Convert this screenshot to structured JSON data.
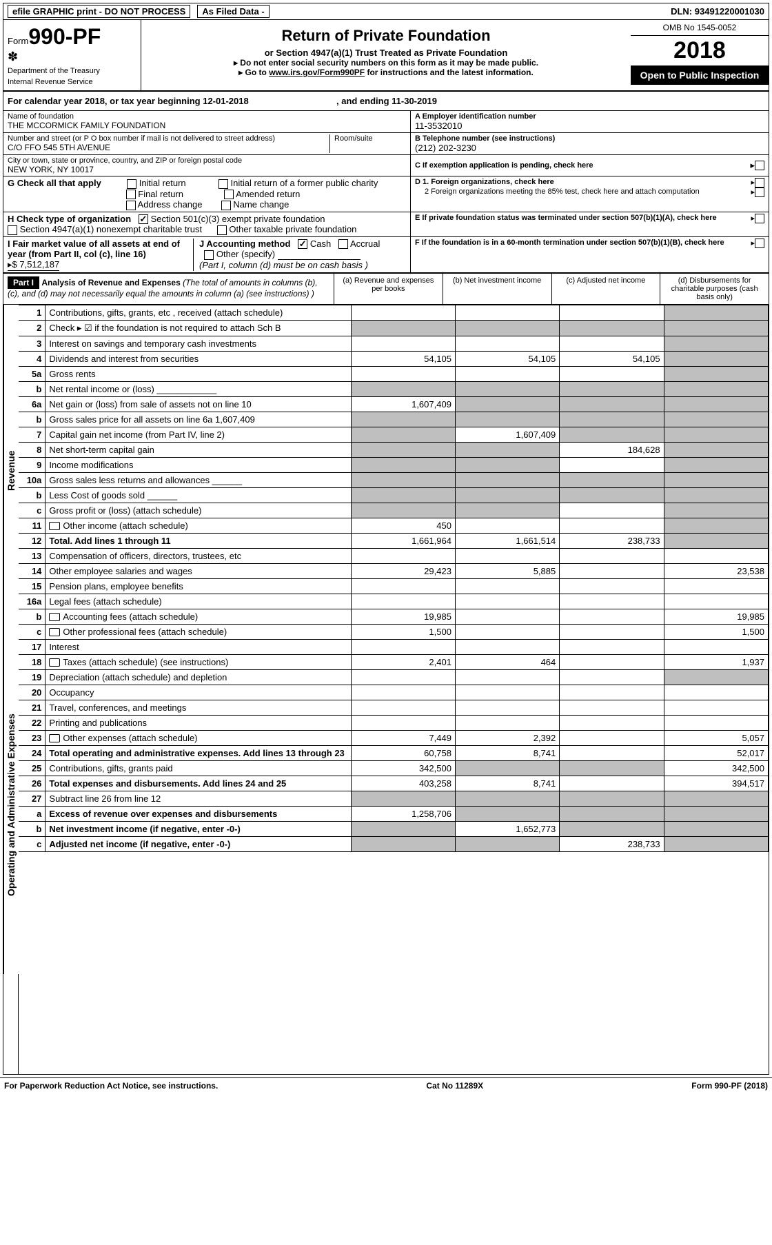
{
  "topbar": {
    "efile": "efile GRAPHIC print - DO NOT PROCESS",
    "asfiled": "As Filed Data -",
    "dln_label": "DLN:",
    "dln": "93491220001030"
  },
  "header": {
    "form_label": "Form",
    "form_no": "990-PF",
    "dept1": "Department of the Treasury",
    "dept2": "Internal Revenue Service",
    "title": "Return of Private Foundation",
    "subtitle": "or Section 4947(a)(1) Trust Treated as Private Foundation",
    "note1": "▸ Do not enter social security numbers on this form as it may be made public.",
    "note2_pre": "▸ Go to ",
    "note2_link": "www.irs.gov/Form990PF",
    "note2_post": " for instructions and the latest information.",
    "omb": "OMB No  1545-0052",
    "year": "2018",
    "openpub": "Open to Public Inspection"
  },
  "calrow": {
    "text_a": "For calendar year 2018, or tax year beginning 12-01-2018",
    "text_b": ", and ending 11-30-2019"
  },
  "name_block": {
    "label": "Name of foundation",
    "value": "THE MCCORMICK FAMILY FOUNDATION",
    "a_label": "A Employer identification number",
    "a_value": "11-3532010",
    "addr_label": "Number and street (or P O  box number if mail is not delivered to street address)",
    "room_label": "Room/suite",
    "addr_value": "C/O FFO 545 5TH AVENUE",
    "b_label": "B Telephone number (see instructions)",
    "b_value": "(212) 202-3230",
    "city_label": "City or town, state or province, country, and ZIP or foreign postal code",
    "city_value": "NEW YORK, NY  10017",
    "c_label": "C  If exemption application is pending, check here"
  },
  "checks": {
    "g_label": "G Check all that apply",
    "g1": "Initial return",
    "g2": "Initial return of a former public charity",
    "g3": "Final return",
    "g4": "Amended return",
    "g5": "Address change",
    "g6": "Name change",
    "h_label": "H Check type of organization",
    "h1": "Section 501(c)(3) exempt private foundation",
    "h2": "Section 4947(a)(1) nonexempt charitable trust",
    "h3": "Other taxable private foundation",
    "d1": "D 1. Foreign organizations, check here",
    "d2": "2  Foreign organizations meeting the 85% test, check here and attach computation",
    "e": "E  If private foundation status was terminated under section 507(b)(1)(A), check here",
    "i_label": "I Fair market value of all assets at end of year (from Part II, col  (c), line 16)",
    "i_value": "▸$  7,512,187",
    "j_label": "J Accounting method",
    "j1": "Cash",
    "j2": "Accrual",
    "j3": "Other (specify)",
    "j_note": "(Part I, column (d) must be on cash basis )",
    "f": "F  If the foundation is in a 60-month termination under section 507(b)(1)(B), check here"
  },
  "part1": {
    "badge": "Part I",
    "title": "Analysis of Revenue and Expenses",
    "title_note": " (The total of amounts in columns (b), (c), and (d) may not necessarily equal the amounts in column (a) (see instructions) )",
    "col_a": "(a)  Revenue and expenses per books",
    "col_b": "(b)  Net investment income",
    "col_c": "(c)  Adjusted net income",
    "col_d": "(d)  Disbursements for charitable purposes (cash basis only)"
  },
  "vlabels": {
    "revenue": "Revenue",
    "expenses": "Operating and Administrative Expenses"
  },
  "rows": [
    {
      "n": "1",
      "label": "Contributions, gifts, grants, etc , received (attach schedule)",
      "a": "",
      "b": "",
      "c": "",
      "d": "",
      "d_shade": true
    },
    {
      "n": "2",
      "label": "Check ▸ ☑ if the foundation is not required to attach Sch  B",
      "a": "",
      "b": "",
      "c": "",
      "d": "",
      "a_shade": true,
      "b_shade": true,
      "c_shade": true,
      "d_shade": true,
      "bold_check": true
    },
    {
      "n": "3",
      "label": "Interest on savings and temporary cash investments",
      "a": "",
      "b": "",
      "c": "",
      "d": "",
      "d_shade": true
    },
    {
      "n": "4",
      "label": "Dividends and interest from securities",
      "a": "54,105",
      "b": "54,105",
      "c": "54,105",
      "d": "",
      "d_shade": true
    },
    {
      "n": "5a",
      "label": "Gross rents",
      "a": "",
      "b": "",
      "c": "",
      "d": "",
      "d_shade": true
    },
    {
      "n": "b",
      "label": "Net rental income or (loss)   ____________",
      "a": "",
      "b": "",
      "c": "",
      "d": "",
      "a_shade": true,
      "b_shade": true,
      "c_shade": true,
      "d_shade": true
    },
    {
      "n": "6a",
      "label": "Net gain or (loss) from sale of assets not on line 10",
      "a": "1,607,409",
      "b": "",
      "c": "",
      "d": "",
      "b_shade": true,
      "c_shade": true,
      "d_shade": true
    },
    {
      "n": "b",
      "label": "Gross sales price for all assets on line 6a                                             1,607,409",
      "a": "",
      "b": "",
      "c": "",
      "d": "",
      "a_shade": true,
      "b_shade": true,
      "c_shade": true,
      "d_shade": true
    },
    {
      "n": "7",
      "label": "Capital gain net income (from Part IV, line 2)",
      "a": "",
      "b": "1,607,409",
      "c": "",
      "d": "",
      "a_shade": true,
      "c_shade": true,
      "d_shade": true
    },
    {
      "n": "8",
      "label": "Net short-term capital gain",
      "a": "",
      "b": "",
      "c": "184,628",
      "d": "",
      "a_shade": true,
      "b_shade": true,
      "d_shade": true
    },
    {
      "n": "9",
      "label": "Income modifications",
      "a": "",
      "b": "",
      "c": "",
      "d": "",
      "a_shade": true,
      "b_shade": true,
      "d_shade": true
    },
    {
      "n": "10a",
      "label": "Gross sales less returns and allowances  ______",
      "a": "",
      "b": "",
      "c": "",
      "d": "",
      "a_shade": true,
      "b_shade": true,
      "c_shade": true,
      "d_shade": true
    },
    {
      "n": "b",
      "label": "Less   Cost of goods sold      ______",
      "a": "",
      "b": "",
      "c": "",
      "d": "",
      "a_shade": true,
      "b_shade": true,
      "c_shade": true,
      "d_shade": true
    },
    {
      "n": "c",
      "label": "Gross profit or (loss) (attach schedule)",
      "a": "",
      "b": "",
      "c": "",
      "d": "",
      "a_shade": true,
      "b_shade": true,
      "d_shade": true
    },
    {
      "n": "11",
      "label": "Other income (attach schedule)",
      "a": "450",
      "b": "",
      "c": "",
      "d": "",
      "icon": true,
      "d_shade": true
    },
    {
      "n": "12",
      "label": "Total. Add lines 1 through 11",
      "a": "1,661,964",
      "b": "1,661,514",
      "c": "238,733",
      "d": "",
      "bold": true,
      "d_shade": true
    },
    {
      "n": "13",
      "label": "Compensation of officers, directors, trustees, etc",
      "a": "",
      "b": "",
      "c": "",
      "d": ""
    },
    {
      "n": "14",
      "label": "Other employee salaries and wages",
      "a": "29,423",
      "b": "5,885",
      "c": "",
      "d": "23,538"
    },
    {
      "n": "15",
      "label": "Pension plans, employee benefits",
      "a": "",
      "b": "",
      "c": "",
      "d": ""
    },
    {
      "n": "16a",
      "label": "Legal fees (attach schedule)",
      "a": "",
      "b": "",
      "c": "",
      "d": ""
    },
    {
      "n": "b",
      "label": "Accounting fees (attach schedule)",
      "a": "19,985",
      "b": "",
      "c": "",
      "d": "19,985",
      "icon": true
    },
    {
      "n": "c",
      "label": "Other professional fees (attach schedule)",
      "a": "1,500",
      "b": "",
      "c": "",
      "d": "1,500",
      "icon": true
    },
    {
      "n": "17",
      "label": "Interest",
      "a": "",
      "b": "",
      "c": "",
      "d": ""
    },
    {
      "n": "18",
      "label": "Taxes (attach schedule) (see instructions)",
      "a": "2,401",
      "b": "464",
      "c": "",
      "d": "1,937",
      "icon": true
    },
    {
      "n": "19",
      "label": "Depreciation (attach schedule) and depletion",
      "a": "",
      "b": "",
      "c": "",
      "d": "",
      "d_shade": true
    },
    {
      "n": "20",
      "label": "Occupancy",
      "a": "",
      "b": "",
      "c": "",
      "d": ""
    },
    {
      "n": "21",
      "label": "Travel, conferences, and meetings",
      "a": "",
      "b": "",
      "c": "",
      "d": ""
    },
    {
      "n": "22",
      "label": "Printing and publications",
      "a": "",
      "b": "",
      "c": "",
      "d": ""
    },
    {
      "n": "23",
      "label": "Other expenses (attach schedule)",
      "a": "7,449",
      "b": "2,392",
      "c": "",
      "d": "5,057",
      "icon": true
    },
    {
      "n": "24",
      "label": "Total operating and administrative expenses. Add lines 13 through 23",
      "a": "60,758",
      "b": "8,741",
      "c": "",
      "d": "52,017",
      "bold": true
    },
    {
      "n": "25",
      "label": "Contributions, gifts, grants paid",
      "a": "342,500",
      "b": "",
      "c": "",
      "d": "342,500",
      "b_shade": true,
      "c_shade": true
    },
    {
      "n": "26",
      "label": "Total expenses and disbursements. Add lines 24 and 25",
      "a": "403,258",
      "b": "8,741",
      "c": "",
      "d": "394,517",
      "bold": true
    },
    {
      "n": "27",
      "label": "Subtract line 26 from line 12",
      "a": "",
      "b": "",
      "c": "",
      "d": "",
      "a_shade": true,
      "b_shade": true,
      "c_shade": true,
      "d_shade": true
    },
    {
      "n": "a",
      "label": "Excess of revenue over expenses and disbursements",
      "a": "1,258,706",
      "b": "",
      "c": "",
      "d": "",
      "bold": true,
      "b_shade": true,
      "c_shade": true,
      "d_shade": true
    },
    {
      "n": "b",
      "label": "Net investment income (if negative, enter -0-)",
      "a": "",
      "b": "1,652,773",
      "c": "",
      "d": "",
      "bold": true,
      "a_shade": true,
      "c_shade": true,
      "d_shade": true
    },
    {
      "n": "c",
      "label": "Adjusted net income (if negative, enter -0-)",
      "a": "",
      "b": "",
      "c": "238,733",
      "d": "",
      "bold": true,
      "a_shade": true,
      "b_shade": true,
      "d_shade": true
    }
  ],
  "footer": {
    "left": "For Paperwork Reduction Act Notice, see instructions.",
    "mid": "Cat  No  11289X",
    "right": "Form 990-PF (2018)"
  }
}
